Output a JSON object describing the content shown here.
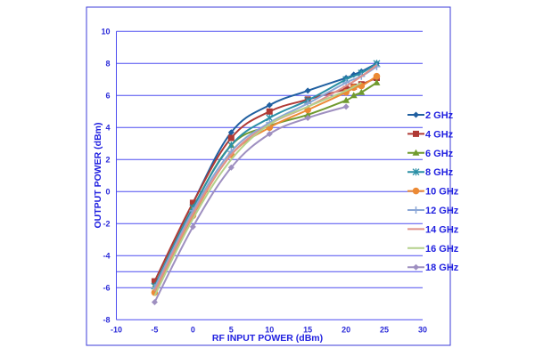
{
  "chart_data": {
    "type": "line",
    "title": "",
    "xlabel": "RF INPUT POWER (dBm)",
    "ylabel": "OUTPUT POWER (dBm)",
    "xlim": [
      -10,
      30
    ],
    "ylim": [
      -8,
      10
    ],
    "xticks": [
      -10,
      -5,
      0,
      5,
      10,
      15,
      20,
      25,
      30
    ],
    "yticks": [
      -8,
      -6,
      -4,
      -2,
      0,
      2,
      4,
      6,
      8,
      10
    ],
    "grid": "horizontal",
    "legend": "right",
    "series": [
      {
        "name": "2 GHz",
        "color": "#1f5fa0",
        "marker": "diamond",
        "x": [
          -5,
          0,
          5,
          10,
          15,
          20,
          21,
          22,
          24
        ],
        "y": [
          -5.6,
          -0.7,
          3.7,
          5.4,
          6.3,
          7.1,
          7.3,
          7.5,
          8.0
        ]
      },
      {
        "name": "4 GHz",
        "color": "#b03a35",
        "marker": "square",
        "x": [
          -5,
          0,
          5,
          10,
          15,
          20,
          21,
          22,
          24
        ],
        "y": [
          -5.6,
          -0.7,
          3.35,
          5.0,
          5.75,
          6.4,
          6.55,
          6.7,
          7.1
        ]
      },
      {
        "name": "6 GHz",
        "color": "#6f9a2e",
        "marker": "triangle",
        "x": [
          -5,
          0,
          5,
          10,
          15,
          20,
          21,
          22,
          24
        ],
        "y": [
          -5.9,
          -1.0,
          2.9,
          4.1,
          4.8,
          5.7,
          6.0,
          6.2,
          6.8
        ]
      },
      {
        "name": "8 GHz",
        "color": "#2a8fa5",
        "marker": "asterisk",
        "x": [
          -5,
          0,
          5,
          10,
          15,
          20,
          22,
          24
        ],
        "y": [
          -5.9,
          -1.0,
          2.9,
          4.6,
          5.7,
          7.0,
          7.4,
          8.0
        ]
      },
      {
        "name": "10 GHz",
        "color": "#ec8a35",
        "marker": "circle",
        "x": [
          -5,
          0,
          5,
          10,
          15,
          20,
          21,
          22,
          24
        ],
        "y": [
          -6.3,
          -1.5,
          2.3,
          4.0,
          5.1,
          6.2,
          6.5,
          6.6,
          7.2
        ]
      },
      {
        "name": "12 GHz",
        "color": "#8aa6d6",
        "marker": "plus",
        "x": [
          -5,
          0,
          5,
          10,
          15,
          20,
          22,
          24
        ],
        "y": [
          -6.0,
          -1.2,
          2.5,
          4.3,
          5.5,
          6.8,
          7.2,
          7.8
        ]
      },
      {
        "name": "14 GHz",
        "color": "#e0908a",
        "marker": "none",
        "x": [
          -5,
          0,
          5,
          10,
          15,
          20,
          22,
          24
        ],
        "y": [
          -6.2,
          -1.4,
          2.3,
          4.2,
          5.3,
          6.6,
          7.2,
          7.9
        ]
      },
      {
        "name": "16 GHz",
        "color": "#b3d08a",
        "marker": "none",
        "x": [
          -5,
          0,
          5,
          10,
          15,
          20,
          22
        ],
        "y": [
          -6.5,
          -1.7,
          2.0,
          4.2,
          5.3,
          6.3,
          6.8
        ]
      },
      {
        "name": "18 GHz",
        "color": "#9e8fc0",
        "marker": "diamond",
        "x": [
          -5,
          0,
          5,
          10,
          15,
          20
        ],
        "y": [
          -6.9,
          -2.2,
          1.5,
          3.6,
          4.6,
          5.3
        ]
      }
    ]
  }
}
